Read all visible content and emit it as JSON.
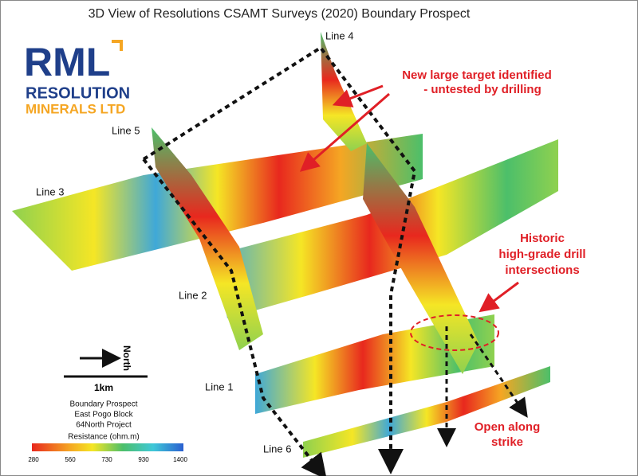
{
  "title": "3D View of Resolutions CSAMT Surveys (2020) Boundary Prospect",
  "logo": {
    "mark": "RML",
    "line1": "RESOLUTION",
    "line2": "MINERALS LTD"
  },
  "survey_lines": [
    "Line 4",
    "Line 5",
    "Line 3",
    "Line 2",
    "Line 1",
    "Line 6"
  ],
  "annotations": {
    "new_target": [
      "New large target identified",
      "- untested by drilling"
    ],
    "historic": [
      "Historic",
      "high-grade drill",
      "intersections"
    ],
    "open": [
      "Open along",
      "strike"
    ]
  },
  "north_label": "North",
  "scale_label": "1km",
  "project_info": [
    "Boundary Prospect",
    "East Pogo Block",
    "64North Project"
  ],
  "legend": {
    "title": "Resistance (ohm.m)",
    "ticks": [
      280,
      560,
      730,
      930,
      1400
    ]
  }
}
